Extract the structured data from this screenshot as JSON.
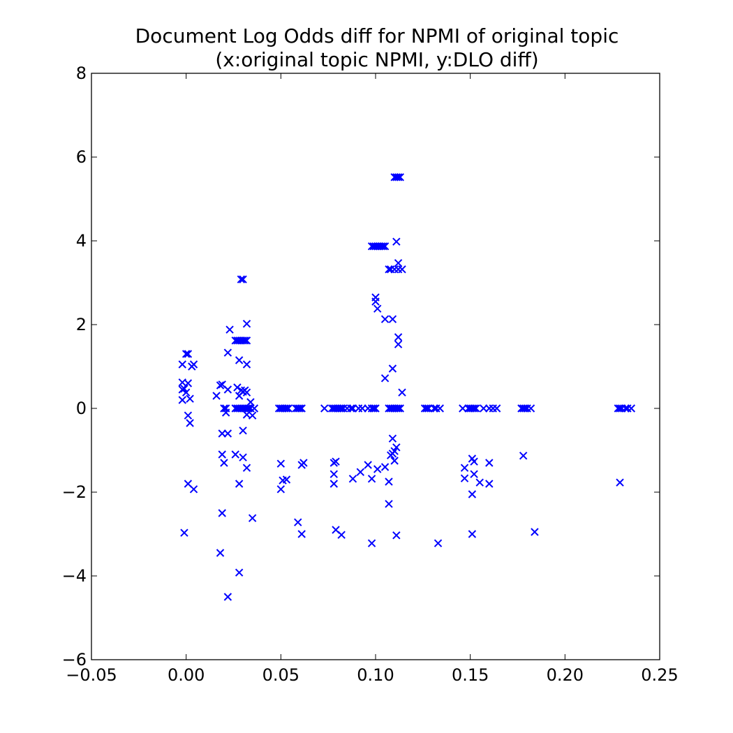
{
  "chart_data": {
    "type": "scatter",
    "title": "Document Log Odds diff for NPMI of original topic",
    "subtitle": "(x:original topic NPMI, y:DLO diff)",
    "xlabel": "",
    "ylabel": "",
    "xlim": [
      -0.05,
      0.25
    ],
    "ylim": [
      -6,
      8
    ],
    "xticks": [
      -0.05,
      0.0,
      0.05,
      0.1,
      0.15,
      0.2,
      0.25
    ],
    "xtick_labels": [
      "−0.05",
      "0.00",
      "0.05",
      "0.10",
      "0.15",
      "0.20",
      "0.25"
    ],
    "yticks": [
      -6,
      -4,
      -2,
      0,
      2,
      4,
      6,
      8
    ],
    "ytick_labels": [
      "−6",
      "−4",
      "−2",
      "0",
      "2",
      "4",
      "6",
      "8"
    ],
    "grid": false,
    "marker": "x",
    "color": "#0000ff",
    "series": [
      {
        "points": [
          [
            -0.002,
            1.05
          ],
          [
            -0.002,
            0.62
          ],
          [
            -0.002,
            0.45
          ],
          [
            -0.002,
            0.2
          ],
          [
            -0.001,
            0.47
          ],
          [
            0.0,
            0.38
          ],
          [
            0.0,
            1.3
          ],
          [
            0.001,
            1.3
          ],
          [
            0.001,
            0.6
          ],
          [
            0.002,
            0.23
          ],
          [
            0.003,
            1.0
          ],
          [
            0.004,
            1.05
          ],
          [
            0.001,
            -0.17
          ],
          [
            0.002,
            -0.35
          ],
          [
            0.001,
            -1.8
          ],
          [
            0.004,
            -1.93
          ],
          [
            -0.001,
            -2.97
          ],
          [
            0.016,
            0.3
          ],
          [
            0.019,
            0.57
          ],
          [
            0.018,
            0.55
          ],
          [
            0.02,
            0.0
          ],
          [
            0.021,
            0.0
          ],
          [
            0.021,
            -0.1
          ],
          [
            0.019,
            -0.6
          ],
          [
            0.022,
            -0.6
          ],
          [
            0.019,
            -1.1
          ],
          [
            0.02,
            -1.3
          ],
          [
            0.019,
            -2.5
          ],
          [
            0.018,
            -3.45
          ],
          [
            0.022,
            1.33
          ],
          [
            0.023,
            1.88
          ],
          [
            0.022,
            0.45
          ],
          [
            0.022,
            -4.5
          ],
          [
            0.026,
            1.62
          ],
          [
            0.027,
            1.62
          ],
          [
            0.028,
            1.62
          ],
          [
            0.029,
            1.62
          ],
          [
            0.03,
            1.62
          ],
          [
            0.031,
            1.62
          ],
          [
            0.032,
            1.62
          ],
          [
            0.029,
            3.08
          ],
          [
            0.03,
            3.08
          ],
          [
            0.028,
            1.15
          ],
          [
            0.032,
            1.05
          ],
          [
            0.032,
            2.02
          ],
          [
            0.027,
            0.5
          ],
          [
            0.028,
            0.3
          ],
          [
            0.029,
            0.43
          ],
          [
            0.03,
            0.4
          ],
          [
            0.031,
            0.43
          ],
          [
            0.032,
            0.38
          ],
          [
            0.026,
            0.0
          ],
          [
            0.027,
            0.0
          ],
          [
            0.028,
            0.0
          ],
          [
            0.029,
            0.0
          ],
          [
            0.03,
            0.0
          ],
          [
            0.031,
            0.0
          ],
          [
            0.032,
            0.0
          ],
          [
            0.033,
            0.0
          ],
          [
            0.034,
            0.0
          ],
          [
            0.036,
            0.0
          ],
          [
            0.032,
            -0.15
          ],
          [
            0.034,
            0.15
          ],
          [
            0.035,
            -0.17
          ],
          [
            0.03,
            -0.53
          ],
          [
            0.026,
            -1.1
          ],
          [
            0.03,
            -1.17
          ],
          [
            0.032,
            -1.42
          ],
          [
            0.028,
            -1.8
          ],
          [
            0.035,
            -2.62
          ],
          [
            0.028,
            -3.92
          ],
          [
            0.049,
            0.0
          ],
          [
            0.05,
            0.0
          ],
          [
            0.051,
            0.0
          ],
          [
            0.052,
            0.0
          ],
          [
            0.053,
            0.0
          ],
          [
            0.054,
            0.0
          ],
          [
            0.058,
            0.0
          ],
          [
            0.059,
            0.0
          ],
          [
            0.06,
            0.0
          ],
          [
            0.061,
            0.0
          ],
          [
            0.05,
            -1.32
          ],
          [
            0.05,
            -1.93
          ],
          [
            0.051,
            -1.72
          ],
          [
            0.053,
            -1.7
          ],
          [
            0.061,
            -1.35
          ],
          [
            0.062,
            -1.3
          ],
          [
            0.059,
            -2.72
          ],
          [
            0.061,
            -3.0
          ],
          [
            0.073,
            0.0
          ],
          [
            0.077,
            0.0
          ],
          [
            0.078,
            0.0
          ],
          [
            0.079,
            0.0
          ],
          [
            0.08,
            0.0
          ],
          [
            0.081,
            0.0
          ],
          [
            0.082,
            0.0
          ],
          [
            0.083,
            0.0
          ],
          [
            0.085,
            0.0
          ],
          [
            0.087,
            0.0
          ],
          [
            0.088,
            0.0
          ],
          [
            0.091,
            0.0
          ],
          [
            0.093,
            0.0
          ],
          [
            0.096,
            0.0
          ],
          [
            0.098,
            0.0
          ],
          [
            0.099,
            0.0
          ],
          [
            0.1,
            0.0
          ],
          [
            0.078,
            -1.3
          ],
          [
            0.078,
            -1.57
          ],
          [
            0.079,
            -1.27
          ],
          [
            0.078,
            -1.8
          ],
          [
            0.079,
            -2.9
          ],
          [
            0.082,
            -3.02
          ],
          [
            0.088,
            -1.68
          ],
          [
            0.092,
            -1.52
          ],
          [
            0.096,
            -1.35
          ],
          [
            0.098,
            -1.68
          ],
          [
            0.101,
            -1.45
          ],
          [
            0.105,
            -1.4
          ],
          [
            0.107,
            -1.75
          ],
          [
            0.107,
            -2.28
          ],
          [
            0.098,
            -3.22
          ],
          [
            0.098,
            3.87
          ],
          [
            0.099,
            3.87
          ],
          [
            0.1,
            3.87
          ],
          [
            0.101,
            3.87
          ],
          [
            0.102,
            3.87
          ],
          [
            0.103,
            3.87
          ],
          [
            0.104,
            3.87
          ],
          [
            0.105,
            3.87
          ],
          [
            0.1,
            2.65
          ],
          [
            0.1,
            2.55
          ],
          [
            0.101,
            2.38
          ],
          [
            0.105,
            2.13
          ],
          [
            0.109,
            2.13
          ],
          [
            0.105,
            0.72
          ],
          [
            0.109,
            0.95
          ],
          [
            0.107,
            3.32
          ],
          [
            0.108,
            3.32
          ],
          [
            0.11,
            3.32
          ],
          [
            0.112,
            3.32
          ],
          [
            0.114,
            3.32
          ],
          [
            0.111,
            3.98
          ],
          [
            0.112,
            3.47
          ],
          [
            0.112,
            1.7
          ],
          [
            0.112,
            1.53
          ],
          [
            0.114,
            0.38
          ],
          [
            0.11,
            5.52
          ],
          [
            0.111,
            5.52
          ],
          [
            0.112,
            5.52
          ],
          [
            0.113,
            5.52
          ],
          [
            0.107,
            0.0
          ],
          [
            0.108,
            0.0
          ],
          [
            0.109,
            0.0
          ],
          [
            0.11,
            0.0
          ],
          [
            0.111,
            0.0
          ],
          [
            0.112,
            0.0
          ],
          [
            0.113,
            0.0
          ],
          [
            0.109,
            -0.72
          ],
          [
            0.111,
            -0.93
          ],
          [
            0.11,
            -1.02
          ],
          [
            0.109,
            -1.08
          ],
          [
            0.108,
            -1.12
          ],
          [
            0.11,
            -1.25
          ],
          [
            0.111,
            -3.03
          ],
          [
            0.126,
            0.0
          ],
          [
            0.127,
            0.0
          ],
          [
            0.128,
            0.0
          ],
          [
            0.131,
            0.0
          ],
          [
            0.132,
            0.0
          ],
          [
            0.134,
            0.0
          ],
          [
            0.133,
            -3.22
          ],
          [
            0.146,
            0.0
          ],
          [
            0.149,
            0.0
          ],
          [
            0.15,
            0.0
          ],
          [
            0.151,
            0.0
          ],
          [
            0.152,
            0.0
          ],
          [
            0.153,
            0.0
          ],
          [
            0.157,
            0.0
          ],
          [
            0.16,
            0.0
          ],
          [
            0.162,
            0.0
          ],
          [
            0.164,
            0.0
          ],
          [
            0.147,
            -1.42
          ],
          [
            0.147,
            -1.67
          ],
          [
            0.151,
            -1.2
          ],
          [
            0.152,
            -1.27
          ],
          [
            0.152,
            -1.57
          ],
          [
            0.155,
            -1.77
          ],
          [
            0.16,
            -1.3
          ],
          [
            0.16,
            -1.8
          ],
          [
            0.151,
            -2.05
          ],
          [
            0.151,
            -3.0
          ],
          [
            0.177,
            0.0
          ],
          [
            0.178,
            0.0
          ],
          [
            0.179,
            0.0
          ],
          [
            0.18,
            0.0
          ],
          [
            0.182,
            0.0
          ],
          [
            0.178,
            -1.13
          ],
          [
            0.184,
            -2.95
          ],
          [
            0.228,
            0.0
          ],
          [
            0.229,
            0.0
          ],
          [
            0.23,
            0.0
          ],
          [
            0.232,
            0.0
          ],
          [
            0.233,
            0.0
          ],
          [
            0.235,
            0.0
          ],
          [
            0.229,
            -1.77
          ]
        ]
      }
    ]
  }
}
